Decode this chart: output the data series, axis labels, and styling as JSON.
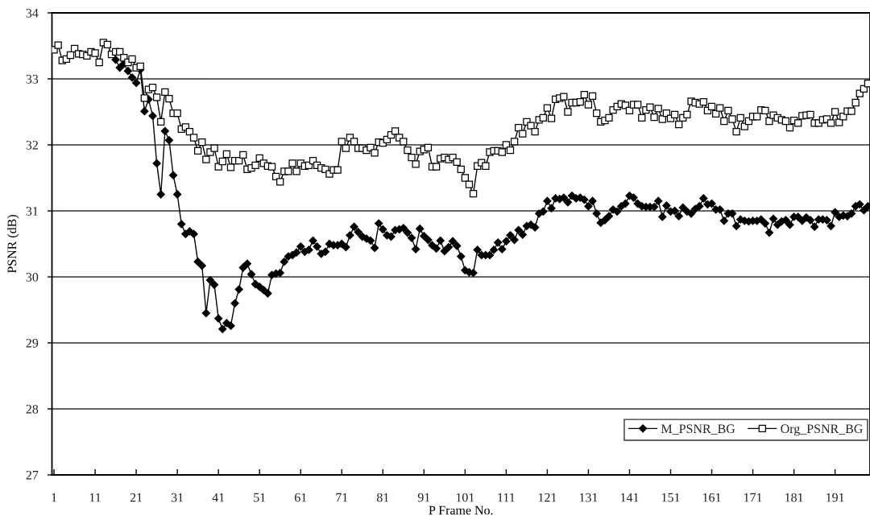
{
  "chart_data": {
    "type": "line",
    "xlabel": "P Frame No.",
    "ylabel": "PSNR (dB)",
    "x": [
      1,
      2,
      3,
      4,
      5,
      6,
      7,
      8,
      9,
      10,
      11,
      12,
      13,
      14,
      15,
      16,
      17,
      18,
      19,
      20,
      21,
      22,
      23,
      24,
      25,
      26,
      27,
      28,
      29,
      30,
      31,
      32,
      33,
      34,
      35,
      36,
      37,
      38,
      39,
      40,
      41,
      42,
      43,
      44,
      45,
      46,
      47,
      48,
      49,
      50,
      51,
      52,
      53,
      54,
      55,
      56,
      57,
      58,
      59,
      60,
      61,
      62,
      63,
      64,
      65,
      66,
      67,
      68,
      69,
      70,
      71,
      72,
      73,
      74,
      75,
      76,
      77,
      78,
      79,
      80,
      81,
      82,
      83,
      84,
      85,
      86,
      87,
      88,
      89,
      90,
      91,
      92,
      93,
      94,
      95,
      96,
      97,
      98,
      99,
      100,
      101,
      102,
      103,
      104,
      105,
      106,
      107,
      108,
      109,
      110,
      111,
      112,
      113,
      114,
      115,
      116,
      117,
      118,
      119,
      120,
      121,
      122,
      123,
      124,
      125,
      126,
      127,
      128,
      129,
      130,
      131,
      132,
      133,
      134,
      135,
      136,
      137,
      138,
      139,
      140,
      141,
      142,
      143,
      144,
      145,
      146,
      147,
      148,
      149,
      150,
      151,
      152,
      153,
      154,
      155,
      156,
      157,
      158,
      159,
      160,
      161,
      162,
      163,
      164,
      165,
      166,
      167,
      168,
      169,
      170,
      171,
      172,
      173,
      174,
      175,
      176,
      177,
      178,
      179,
      180,
      181,
      182,
      183,
      184,
      185,
      186,
      187,
      188,
      189,
      190,
      191,
      192,
      193,
      194,
      195,
      196,
      197,
      198,
      199
    ],
    "series": [
      {
        "name": "M_PSNR_BG",
        "color": "#000000",
        "marker": "diamond",
        "values": [
          null,
          null,
          null,
          null,
          null,
          null,
          null,
          null,
          null,
          null,
          null,
          null,
          null,
          null,
          null,
          33.29,
          33.17,
          33.23,
          33.12,
          33.02,
          32.94,
          33.14,
          32.51,
          32.69,
          32.44,
          31.72,
          31.25,
          32.21,
          32.07,
          31.54,
          31.25,
          30.8,
          30.65,
          30.69,
          30.65,
          30.23,
          30.17,
          29.45,
          29.95,
          29.88,
          29.37,
          29.21,
          29.3,
          29.26,
          29.6,
          29.81,
          30.14,
          30.2,
          30.04,
          29.89,
          29.85,
          29.8,
          29.75,
          30.03,
          30.05,
          30.06,
          30.23,
          30.31,
          30.33,
          30.37,
          30.46,
          30.38,
          30.41,
          30.55,
          30.46,
          30.35,
          30.38,
          30.5,
          30.48,
          30.48,
          30.5,
          30.45,
          30.63,
          30.76,
          30.68,
          30.61,
          30.58,
          30.55,
          30.44,
          30.81,
          30.72,
          30.63,
          30.61,
          30.71,
          30.72,
          30.74,
          30.67,
          30.59,
          30.42,
          30.73,
          30.62,
          30.56,
          30.48,
          30.43,
          30.55,
          30.39,
          30.45,
          30.54,
          30.47,
          30.31,
          30.1,
          30.07,
          30.06,
          30.41,
          30.33,
          30.33,
          30.33,
          30.41,
          30.52,
          30.42,
          30.54,
          30.63,
          30.56,
          30.71,
          30.64,
          30.77,
          30.79,
          30.75,
          30.96,
          30.99,
          31.15,
          31.04,
          31.19,
          31.18,
          31.2,
          31.13,
          31.23,
          31.19,
          31.2,
          31.17,
          31.07,
          31.15,
          30.96,
          30.82,
          30.86,
          30.92,
          31.02,
          30.99,
          31.07,
          31.11,
          31.23,
          31.2,
          31.11,
          31.07,
          31.06,
          31.06,
          31.06,
          31.15,
          30.91,
          31.08,
          30.99,
          31.0,
          30.92,
          31.05,
          30.99,
          30.96,
          31.03,
          31.07,
          31.19,
          31.1,
          31.11,
          31.02,
          31.02,
          30.85,
          30.96,
          30.96,
          30.77,
          30.87,
          30.85,
          30.84,
          30.85,
          30.85,
          30.87,
          30.81,
          30.67,
          30.88,
          30.79,
          30.84,
          30.86,
          30.79,
          30.91,
          30.91,
          30.85,
          30.9,
          30.86,
          30.76,
          30.87,
          30.87,
          30.86,
          30.77,
          30.98,
          30.91,
          30.93,
          30.92,
          30.96,
          31.07,
          31.1,
          31.01,
          31.07
        ]
      },
      {
        "name": "Org_PSNR_BG",
        "color": "#000000",
        "marker": "square",
        "values": [
          33.44,
          33.51,
          33.28,
          33.3,
          33.36,
          33.46,
          33.38,
          33.37,
          33.35,
          33.41,
          33.39,
          33.25,
          33.55,
          33.52,
          33.37,
          33.41,
          33.41,
          33.32,
          33.25,
          33.3,
          33.17,
          33.19,
          32.71,
          32.84,
          32.87,
          32.72,
          32.35,
          32.8,
          32.7,
          32.48,
          32.48,
          32.24,
          32.27,
          32.2,
          32.11,
          31.91,
          32.04,
          31.78,
          31.89,
          31.95,
          31.67,
          31.75,
          31.86,
          31.66,
          31.76,
          31.76,
          31.85,
          31.63,
          31.65,
          31.69,
          31.8,
          31.72,
          31.68,
          31.67,
          31.52,
          31.44,
          31.6,
          31.6,
          31.72,
          31.6,
          31.72,
          31.68,
          31.69,
          31.76,
          31.69,
          31.65,
          31.63,
          31.56,
          31.62,
          31.62,
          32.05,
          31.95,
          32.11,
          32.05,
          31.95,
          31.95,
          31.92,
          31.96,
          31.88,
          32.04,
          32.03,
          32.08,
          32.15,
          32.21,
          32.11,
          32.05,
          31.92,
          31.81,
          31.71,
          31.9,
          31.93,
          31.96,
          31.67,
          31.67,
          31.79,
          31.81,
          31.78,
          31.81,
          31.74,
          31.63,
          31.5,
          31.4,
          31.26,
          31.68,
          31.73,
          31.68,
          31.89,
          31.91,
          31.91,
          31.89,
          32.0,
          31.92,
          32.05,
          32.26,
          32.17,
          32.35,
          32.29,
          32.2,
          32.38,
          32.41,
          32.56,
          32.4,
          32.69,
          32.71,
          32.73,
          32.5,
          32.64,
          32.64,
          32.65,
          32.76,
          32.61,
          32.74,
          32.48,
          32.35,
          32.37,
          32.41,
          32.53,
          32.58,
          32.62,
          32.6,
          32.52,
          32.61,
          32.61,
          32.41,
          32.53,
          32.57,
          32.42,
          32.55,
          32.39,
          32.48,
          32.4,
          32.46,
          32.31,
          32.41,
          32.46,
          32.66,
          32.64,
          32.62,
          32.65,
          32.52,
          32.58,
          32.47,
          32.56,
          32.36,
          32.52,
          32.39,
          32.2,
          32.41,
          32.28,
          32.36,
          32.43,
          32.43,
          32.53,
          32.52,
          32.36,
          32.45,
          32.41,
          32.38,
          32.36,
          32.26,
          32.37,
          32.33,
          32.44,
          32.45,
          32.46,
          32.33,
          32.33,
          32.38,
          32.39,
          32.33,
          32.5,
          32.34,
          32.43,
          32.51,
          32.51,
          32.64,
          32.78,
          32.85,
          32.93
        ]
      }
    ],
    "xlim": [
      0.5,
      199.5
    ],
    "ylim": [
      27,
      34
    ],
    "xticks": [
      1,
      11,
      21,
      31,
      41,
      51,
      61,
      71,
      81,
      91,
      101,
      111,
      121,
      131,
      141,
      151,
      161,
      171,
      181,
      191
    ],
    "yticks": [
      27,
      28,
      29,
      30,
      31,
      32,
      33,
      34
    ],
    "grid": "y",
    "legend": "bottom right"
  }
}
